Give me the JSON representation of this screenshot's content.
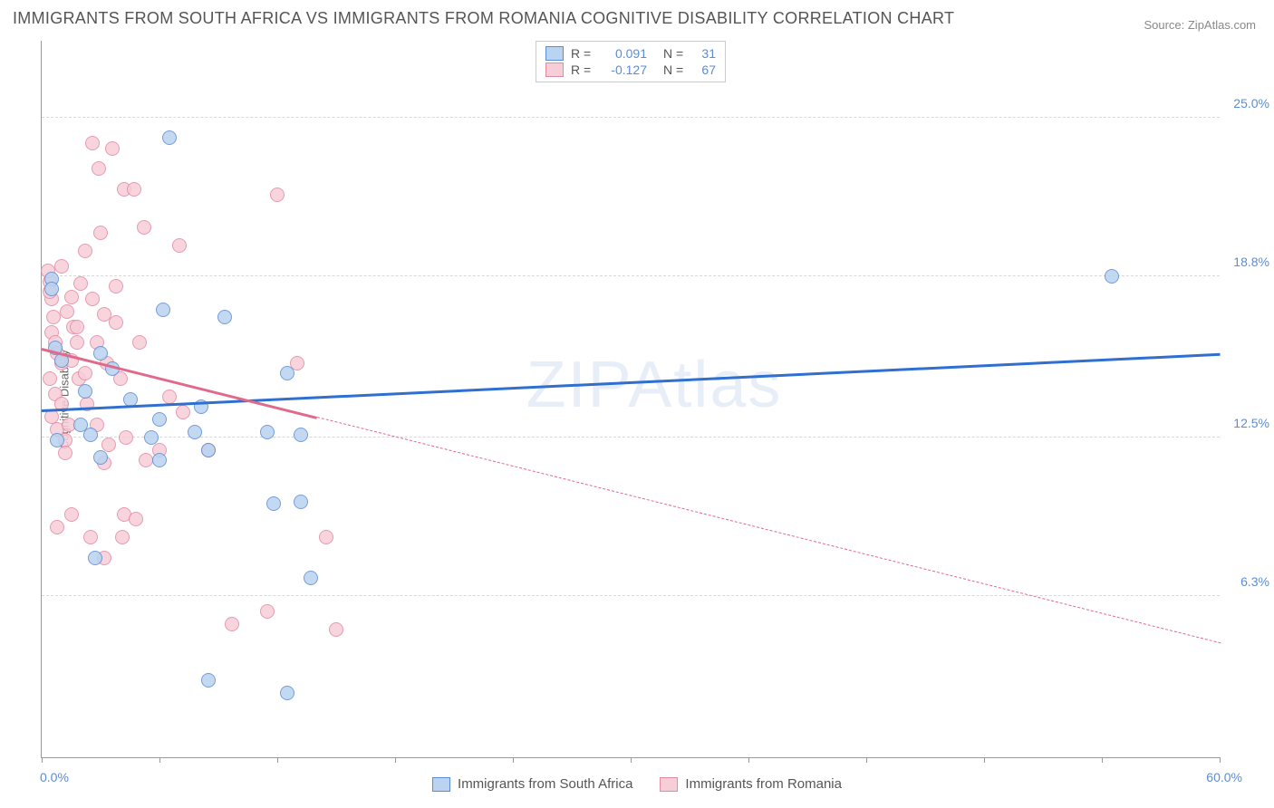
{
  "title": "IMMIGRANTS FROM SOUTH AFRICA VS IMMIGRANTS FROM ROMANIA COGNITIVE DISABILITY CORRELATION CHART",
  "source": "Source: ZipAtlas.com",
  "watermark": "ZIPAtlas",
  "y_axis_title": "Cognitive Disability",
  "chart": {
    "type": "scatter",
    "background_color": "#ffffff",
    "grid_color": "#d8d8d8",
    "axis_color": "#999999",
    "text_color": "#555555",
    "value_color": "#5b8dd6",
    "xlim": [
      0,
      60
    ],
    "ylim": [
      0,
      28
    ],
    "x_labels": {
      "min": "0.0%",
      "max": "60.0%"
    },
    "y_ticks": [
      {
        "v": 6.3,
        "label": "6.3%"
      },
      {
        "v": 12.5,
        "label": "12.5%"
      },
      {
        "v": 18.8,
        "label": "18.8%"
      },
      {
        "v": 25.0,
        "label": "25.0%"
      }
    ],
    "x_tick_positions": [
      0,
      6,
      12,
      18,
      24,
      30,
      36,
      42,
      48,
      54,
      60
    ],
    "marker_radius": 8,
    "marker_stroke_width": 1,
    "series": [
      {
        "name": "Immigrants from South Africa",
        "fill": "#b9d3f0",
        "stroke": "#5b8dd6",
        "r": "0.091",
        "n": "31",
        "trend": {
          "x1": 0,
          "y1": 13.6,
          "x2": 60,
          "y2": 15.8,
          "color": "#2f6fd0",
          "width": 3,
          "solid_end_x": 60
        },
        "points": [
          [
            0.5,
            18.7
          ],
          [
            0.5,
            18.3
          ],
          [
            0.7,
            16.0
          ],
          [
            0.8,
            12.4
          ],
          [
            6.5,
            24.2
          ],
          [
            6.2,
            17.5
          ],
          [
            9.3,
            17.2
          ],
          [
            6.0,
            13.2
          ],
          [
            5.6,
            12.5
          ],
          [
            6.0,
            11.6
          ],
          [
            2.5,
            12.6
          ],
          [
            3.0,
            11.7
          ],
          [
            2.7,
            7.8
          ],
          [
            7.8,
            12.7
          ],
          [
            8.1,
            13.7
          ],
          [
            8.5,
            12.0
          ],
          [
            11.5,
            12.7
          ],
          [
            11.8,
            9.9
          ],
          [
            12.5,
            15.0
          ],
          [
            13.2,
            12.6
          ],
          [
            13.2,
            10.0
          ],
          [
            13.7,
            7.0
          ],
          [
            3.6,
            15.2
          ],
          [
            2.2,
            14.3
          ],
          [
            54.5,
            18.8
          ],
          [
            8.5,
            3.0
          ],
          [
            12.5,
            2.5
          ],
          [
            3.0,
            15.8
          ],
          [
            4.5,
            14.0
          ],
          [
            2.0,
            13.0
          ],
          [
            1.0,
            15.5
          ]
        ]
      },
      {
        "name": "Immigrants from Romania",
        "fill": "#f7cdd8",
        "stroke": "#e38aa3",
        "r": "-0.127",
        "n": "67",
        "trend": {
          "x1": 0,
          "y1": 16.0,
          "x2": 60,
          "y2": 4.5,
          "color": "#e06a8c",
          "width": 3,
          "solid_end_x": 14
        },
        "points": [
          [
            0.4,
            18.6
          ],
          [
            0.5,
            17.9
          ],
          [
            0.6,
            17.2
          ],
          [
            0.5,
            16.6
          ],
          [
            0.7,
            16.2
          ],
          [
            0.8,
            15.8
          ],
          [
            1.0,
            15.4
          ],
          [
            0.4,
            14.8
          ],
          [
            0.7,
            14.2
          ],
          [
            1.0,
            13.8
          ],
          [
            0.5,
            13.3
          ],
          [
            0.8,
            12.8
          ],
          [
            1.2,
            12.4
          ],
          [
            0.4,
            18.2
          ],
          [
            1.5,
            18.0
          ],
          [
            1.3,
            17.4
          ],
          [
            1.6,
            16.8
          ],
          [
            1.8,
            16.2
          ],
          [
            1.5,
            15.5
          ],
          [
            1.9,
            14.8
          ],
          [
            1.2,
            11.9
          ],
          [
            1.5,
            9.5
          ],
          [
            0.8,
            9.0
          ],
          [
            2.6,
            24.0
          ],
          [
            3.6,
            23.8
          ],
          [
            2.9,
            23.0
          ],
          [
            4.2,
            22.2
          ],
          [
            4.7,
            22.2
          ],
          [
            3.0,
            20.5
          ],
          [
            5.2,
            20.7
          ],
          [
            2.2,
            19.8
          ],
          [
            2.6,
            17.9
          ],
          [
            3.2,
            17.3
          ],
          [
            3.8,
            17.0
          ],
          [
            2.8,
            16.2
          ],
          [
            3.3,
            15.4
          ],
          [
            4.0,
            14.8
          ],
          [
            2.3,
            13.8
          ],
          [
            2.8,
            13.0
          ],
          [
            3.4,
            12.2
          ],
          [
            4.3,
            12.5
          ],
          [
            3.2,
            11.5
          ],
          [
            2.5,
            8.6
          ],
          [
            3.2,
            7.8
          ],
          [
            4.1,
            8.6
          ],
          [
            4.2,
            9.5
          ],
          [
            4.8,
            9.3
          ],
          [
            5.3,
            11.6
          ],
          [
            6.5,
            14.1
          ],
          [
            7.0,
            20.0
          ],
          [
            7.2,
            13.5
          ],
          [
            8.5,
            12.0
          ],
          [
            12.0,
            22.0
          ],
          [
            13.0,
            15.4
          ],
          [
            9.7,
            5.2
          ],
          [
            11.5,
            5.7
          ],
          [
            14.5,
            8.6
          ],
          [
            15.0,
            5.0
          ],
          [
            2.0,
            18.5
          ],
          [
            1.0,
            19.2
          ],
          [
            0.3,
            19.0
          ],
          [
            2.2,
            15.0
          ],
          [
            3.8,
            18.4
          ],
          [
            5.0,
            16.2
          ],
          [
            6.0,
            12.0
          ],
          [
            1.8,
            16.8
          ],
          [
            1.4,
            13.0
          ]
        ]
      }
    ]
  },
  "legend_top": {
    "r_label": "R =",
    "n_label": "N ="
  },
  "legend_bottom_labels": [
    "Immigrants from South Africa",
    "Immigrants from Romania"
  ]
}
